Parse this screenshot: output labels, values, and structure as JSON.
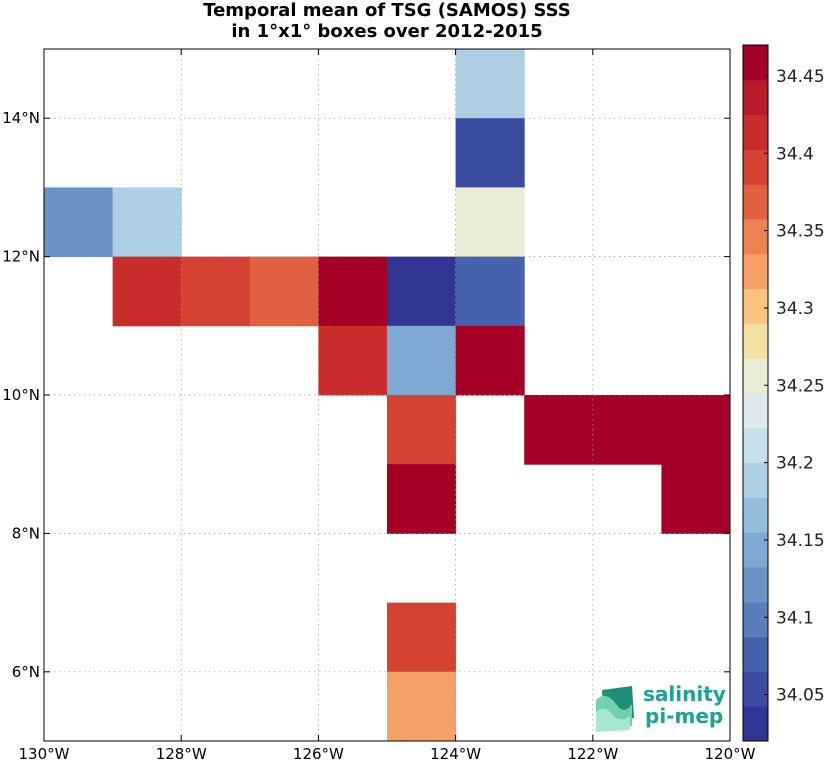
{
  "title": {
    "line1": "Temporal mean of TSG (SAMOS) SSS",
    "line2": "in 1°x1° boxes over 2012-2015"
  },
  "map": {
    "x_axis": {
      "min": -130,
      "max": -120,
      "ticks": [
        {
          "value": -130,
          "label": "130°W"
        },
        {
          "value": -128,
          "label": "128°W"
        },
        {
          "value": -126,
          "label": "126°W"
        },
        {
          "value": -124,
          "label": "124°W"
        },
        {
          "value": -122,
          "label": "122°W"
        },
        {
          "value": -120,
          "label": "120°W"
        }
      ]
    },
    "y_axis": {
      "min": 5,
      "max": 15,
      "ticks": [
        {
          "value": 6,
          "label": "6°N"
        },
        {
          "value": 8,
          "label": "8°N"
        },
        {
          "value": 10,
          "label": "10°N"
        },
        {
          "value": 12,
          "label": "12°N"
        },
        {
          "value": 14,
          "label": "14°N"
        }
      ]
    },
    "grid": true,
    "cells": [
      {
        "lon": -124,
        "lat": 14,
        "sss": 34.18
      },
      {
        "lon": -124,
        "lat": 13,
        "sss": 34.05
      },
      {
        "lon": -130,
        "lat": 12,
        "sss": 34.12
      },
      {
        "lon": -129,
        "lat": 12,
        "sss": 34.18
      },
      {
        "lon": -124,
        "lat": 12,
        "sss": 34.25
      },
      {
        "lon": -129,
        "lat": 11,
        "sss": 34.42
      },
      {
        "lon": -128,
        "lat": 11,
        "sss": 34.4
      },
      {
        "lon": -127,
        "lat": 11,
        "sss": 34.36
      },
      {
        "lon": -126,
        "lat": 11,
        "sss": 34.45
      },
      {
        "lon": -125,
        "lat": 11,
        "sss": 34.04
      },
      {
        "lon": -124,
        "lat": 11,
        "sss": 34.07
      },
      {
        "lon": -126,
        "lat": 10,
        "sss": 34.42
      },
      {
        "lon": -125,
        "lat": 10,
        "sss": 34.15
      },
      {
        "lon": -124,
        "lat": 10,
        "sss": 34.45
      },
      {
        "lon": -125,
        "lat": 9,
        "sss": 34.38
      },
      {
        "lon": -123,
        "lat": 9,
        "sss": 34.45
      },
      {
        "lon": -122,
        "lat": 9,
        "sss": 34.45
      },
      {
        "lon": -121,
        "lat": 9,
        "sss": 34.45
      },
      {
        "lon": -125,
        "lat": 8,
        "sss": 34.45
      },
      {
        "lon": -121,
        "lat": 8,
        "sss": 34.45
      },
      {
        "lon": -125,
        "lat": 6,
        "sss": 34.4
      },
      {
        "lon": -125,
        "lat": 5,
        "sss": 34.32
      }
    ]
  },
  "colorbar": {
    "min": 34.02,
    "max": 34.47,
    "colors": [
      "#313695",
      "#3a4ba0",
      "#4563ad",
      "#5a7dbb",
      "#6b93c6",
      "#7ea9d2",
      "#94bfdc",
      "#accfe4",
      "#c5e0eb",
      "#dde9ef",
      "#eaecd6",
      "#f3dfa2",
      "#f7c37f",
      "#f3a166",
      "#ec8452",
      "#e0603f",
      "#d44234",
      "#c82d2b",
      "#b91a2a",
      "#a50026"
    ],
    "ticks": [
      {
        "value": 34.05,
        "label": "34.05"
      },
      {
        "value": 34.1,
        "label": "34.1"
      },
      {
        "value": 34.15,
        "label": "34.15"
      },
      {
        "value": 34.2,
        "label": "34.2"
      },
      {
        "value": 34.25,
        "label": "34.25"
      },
      {
        "value": 34.3,
        "label": "34.3"
      },
      {
        "value": 34.35,
        "label": "34.35"
      },
      {
        "value": 34.4,
        "label": "34.4"
      },
      {
        "value": 34.45,
        "label": "34.45"
      }
    ]
  },
  "logo": {
    "line1": "salinity",
    "line2": "pi-mep",
    "color": "#1aa398"
  }
}
